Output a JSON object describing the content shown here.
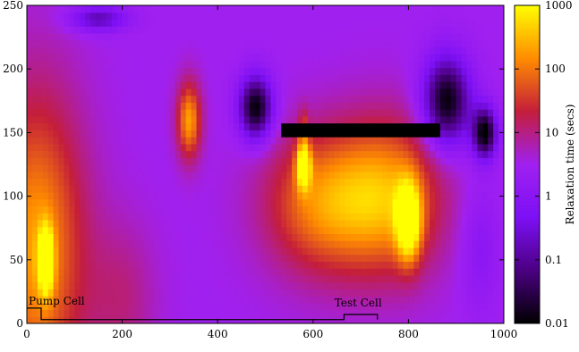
{
  "chart_data": {
    "type": "heatmap",
    "x_ticks": [
      "0",
      "200",
      "400",
      "600",
      "800",
      "1000"
    ],
    "x_tick_values": [
      0,
      200,
      400,
      600,
      800,
      1000
    ],
    "y_ticks": [
      "0",
      "50",
      "100",
      "150",
      "200",
      "250"
    ],
    "y_tick_values": [
      0,
      50,
      100,
      150,
      200,
      250
    ],
    "xlim": [
      0,
      1000
    ],
    "ylim": [
      0,
      250
    ],
    "colorbar": {
      "label": "Relaxation time (secs)",
      "scale": "log",
      "range": [
        0.01,
        1000
      ],
      "ticks": [
        "0.01",
        "0.1",
        "1",
        "10",
        "100",
        "1000"
      ],
      "tick_values": [
        0.01,
        0.1,
        1,
        10,
        100,
        1000
      ],
      "colormap": [
        "#000000",
        "#4b0082",
        "#7d10f5",
        "#a020f0",
        "#c41e3a",
        "#ff8c00",
        "#ffff00"
      ]
    },
    "annotations": [
      {
        "text": "Pump Cell",
        "x": 0,
        "y": 12
      },
      {
        "text": "Test Cell",
        "x": 660,
        "y": 9
      }
    ],
    "cell_outline": [
      [
        0,
        12
      ],
      [
        30,
        12
      ],
      [
        30,
        3
      ],
      [
        665,
        3
      ],
      [
        665,
        7
      ],
      [
        735,
        7
      ],
      [
        735,
        3
      ]
    ],
    "background_level": 0.5,
    "features": [
      {
        "x": 20,
        "y": 60,
        "sx": 100,
        "sy": 120,
        "value": 200
      },
      {
        "x": 40,
        "y": 50,
        "sx": 15,
        "sy": 25,
        "value": 900
      },
      {
        "x": 200,
        "y": 20,
        "sx": 70,
        "sy": 60,
        "value": 10
      },
      {
        "x": 340,
        "y": 160,
        "sx": 25,
        "sy": 30,
        "value": 200
      },
      {
        "x": 620,
        "y": 95,
        "sx": 120,
        "sy": 55,
        "value": 120
      },
      {
        "x": 580,
        "y": 125,
        "sx": 15,
        "sy": 18,
        "value": 600
      },
      {
        "x": 800,
        "y": 80,
        "sx": 25,
        "sy": 30,
        "value": 800
      },
      {
        "x": 760,
        "y": 100,
        "sx": 110,
        "sy": 60,
        "value": 150
      },
      {
        "x": 480,
        "y": 170,
        "sx": 35,
        "sy": 25,
        "value": 0.01
      },
      {
        "x": 880,
        "y": 175,
        "sx": 50,
        "sy": 35,
        "value": 0.01
      },
      {
        "x": 960,
        "y": 150,
        "sx": 25,
        "sy": 20,
        "value": 0.01
      },
      {
        "x": 580,
        "y": 155,
        "sx": 10,
        "sy": 15,
        "value": 15
      },
      {
        "x": 150,
        "y": 240,
        "sx": 60,
        "sy": 10,
        "value": 0.15
      },
      {
        "x": 950,
        "y": 60,
        "sx": 40,
        "sy": 50,
        "value": 1
      }
    ],
    "barrier": {
      "x_range": [
        530,
        870
      ],
      "y": 153,
      "value": 0.01
    }
  }
}
